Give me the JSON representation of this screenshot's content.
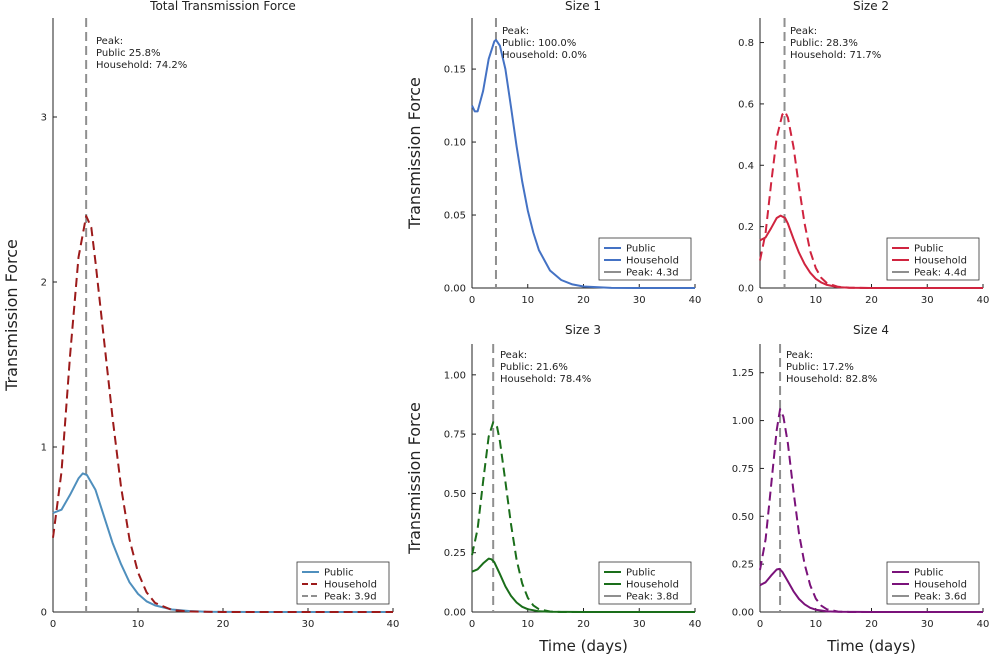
{
  "chart_data": [
    {
      "type": "line",
      "title": "Total Transmission Force",
      "xlabel": "",
      "ylabel": "Transmission Force",
      "xlim": [
        0,
        40
      ],
      "ylim": [
        0,
        3.6
      ],
      "xticks": [
        0,
        10,
        20,
        30,
        40
      ],
      "yticks": [
        0,
        1,
        2,
        3
      ],
      "ytick_labels": [
        "0",
        "1",
        "2",
        "3"
      ],
      "annotation": [
        "Peak:",
        "Public 25.8%",
        "Household: 74.2%"
      ],
      "peak_day": 3.9,
      "colors": {
        "public": "#4f8fbd",
        "household": "#9c1a1a",
        "peak": "#8f8f8f"
      },
      "legend": {
        "position": "bottom-right",
        "labels": [
          "Public",
          "Household",
          "Peak: 3.9d"
        ]
      },
      "series": [
        {
          "name": "Public",
          "style": "solid",
          "points": [
            [
              0,
              0.6
            ],
            [
              1,
              0.62
            ],
            [
              2,
              0.71
            ],
            [
              3,
              0.81
            ],
            [
              3.5,
              0.84
            ],
            [
              4,
              0.83
            ],
            [
              5,
              0.74
            ],
            [
              6,
              0.58
            ],
            [
              7,
              0.42
            ],
            [
              8,
              0.29
            ],
            [
              9,
              0.18
            ],
            [
              10,
              0.11
            ],
            [
              11,
              0.065
            ],
            [
              12,
              0.04
            ],
            [
              14,
              0.015
            ],
            [
              16,
              0.006
            ],
            [
              18,
              0.002
            ],
            [
              20,
              0.0008
            ],
            [
              25,
              0
            ],
            [
              30,
              0
            ],
            [
              40,
              0
            ]
          ]
        },
        {
          "name": "Household",
          "style": "dashed",
          "points": [
            [
              0,
              0.45
            ],
            [
              1,
              0.85
            ],
            [
              2,
              1.55
            ],
            [
              3,
              2.15
            ],
            [
              3.9,
              2.4
            ],
            [
              4.5,
              2.33
            ],
            [
              5,
              2.12
            ],
            [
              6,
              1.65
            ],
            [
              7,
              1.18
            ],
            [
              8,
              0.76
            ],
            [
              9,
              0.44
            ],
            [
              10,
              0.24
            ],
            [
              11,
              0.12
            ],
            [
              12,
              0.055
            ],
            [
              14,
              0.012
            ],
            [
              16,
              0.003
            ],
            [
              18,
              0.001
            ],
            [
              20,
              0
            ],
            [
              30,
              0
            ],
            [
              40,
              0
            ]
          ]
        }
      ]
    },
    {
      "type": "line",
      "title": "Size 1",
      "xlabel": "",
      "ylabel": "Transmission Force",
      "xlim": [
        0,
        40
      ],
      "ylim": [
        0,
        0.185
      ],
      "xticks": [
        0,
        10,
        20,
        30,
        40
      ],
      "yticks": [
        0,
        0.05,
        0.1,
        0.15
      ],
      "ytick_labels": [
        "0.00",
        "0.05",
        "0.10",
        "0.15"
      ],
      "annotation": [
        "Peak:",
        "Public: 100.0%",
        "Household: 0.0%"
      ],
      "peak_day": 4.3,
      "colors": {
        "public": "#4472c4",
        "household": "#4472c4",
        "peak": "#8f8f8f"
      },
      "legend": {
        "position": "bottom-right",
        "labels": [
          "Public",
          "Household",
          "Peak: 4.3d"
        ]
      },
      "series": [
        {
          "name": "Public",
          "style": "solid",
          "points": [
            [
              0,
              0.125
            ],
            [
              0.5,
              0.121
            ],
            [
              1,
              0.121
            ],
            [
              2,
              0.135
            ],
            [
              3,
              0.157
            ],
            [
              4,
              0.169
            ],
            [
              4.3,
              0.17
            ],
            [
              5,
              0.166
            ],
            [
              6,
              0.15
            ],
            [
              7,
              0.124
            ],
            [
              8,
              0.097
            ],
            [
              9,
              0.073
            ],
            [
              10,
              0.053
            ],
            [
              11,
              0.038
            ],
            [
              12,
              0.026
            ],
            [
              14,
              0.012
            ],
            [
              16,
              0.0055
            ],
            [
              18,
              0.0025
            ],
            [
              20,
              0.001
            ],
            [
              25,
              0.0001
            ],
            [
              30,
              0
            ],
            [
              40,
              0
            ]
          ]
        }
      ]
    },
    {
      "type": "line",
      "title": "Size 2",
      "xlabel": "",
      "ylabel": "",
      "xlim": [
        0,
        40
      ],
      "ylim": [
        0,
        0.88
      ],
      "xticks": [
        0,
        10,
        20,
        30,
        40
      ],
      "yticks": [
        0,
        0.2,
        0.4,
        0.6,
        0.8
      ],
      "ytick_labels": [
        "0.0",
        "0.2",
        "0.4",
        "0.6",
        "0.8"
      ],
      "annotation": [
        "Peak:",
        "Public: 28.3%",
        "Household: 71.7%"
      ],
      "peak_day": 4.4,
      "colors": {
        "public": "#d0243f",
        "household": "#d0243f",
        "peak": "#8f8f8f"
      },
      "legend": {
        "position": "bottom-right",
        "labels": [
          "Public",
          "Household",
          "Peak: 4.4d"
        ]
      },
      "series": [
        {
          "name": "Public",
          "style": "solid",
          "points": [
            [
              0,
              0.155
            ],
            [
              1,
              0.165
            ],
            [
              2,
              0.195
            ],
            [
              3,
              0.228
            ],
            [
              3.7,
              0.236
            ],
            [
              4.5,
              0.228
            ],
            [
              5,
              0.21
            ],
            [
              6,
              0.16
            ],
            [
              7,
              0.115
            ],
            [
              8,
              0.078
            ],
            [
              9,
              0.05
            ],
            [
              10,
              0.03
            ],
            [
              11,
              0.018
            ],
            [
              12,
              0.01
            ],
            [
              14,
              0.003
            ],
            [
              16,
              0.001
            ],
            [
              20,
              0
            ],
            [
              30,
              0
            ],
            [
              40,
              0
            ]
          ]
        },
        {
          "name": "Household",
          "style": "dashed",
          "points": [
            [
              0,
              0.09
            ],
            [
              1,
              0.18
            ],
            [
              2,
              0.34
            ],
            [
              3,
              0.49
            ],
            [
              4,
              0.565
            ],
            [
              4.5,
              0.575
            ],
            [
              5,
              0.555
            ],
            [
              6,
              0.46
            ],
            [
              7,
              0.33
            ],
            [
              8,
              0.21
            ],
            [
              9,
              0.12
            ],
            [
              10,
              0.065
            ],
            [
              11,
              0.033
            ],
            [
              12,
              0.016
            ],
            [
              14,
              0.004
            ],
            [
              16,
              0.001
            ],
            [
              20,
              0
            ],
            [
              30,
              0
            ],
            [
              40,
              0
            ]
          ]
        }
      ]
    },
    {
      "type": "line",
      "title": "Size 3",
      "xlabel": "Time (days)",
      "ylabel": "Transmission Force",
      "xlim": [
        0,
        40
      ],
      "ylim": [
        0,
        1.13
      ],
      "xticks": [
        0,
        10,
        20,
        30,
        40
      ],
      "yticks": [
        0,
        0.25,
        0.5,
        0.75,
        1.0
      ],
      "ytick_labels": [
        "0.00",
        "0.25",
        "0.50",
        "0.75",
        "1.00"
      ],
      "annotation": [
        "Peak:",
        "Public: 21.6%",
        "Household: 78.4%"
      ],
      "peak_day": 3.8,
      "colors": {
        "public": "#1a6e1a",
        "household": "#1a6e1a",
        "peak": "#8f8f8f"
      },
      "legend": {
        "position": "bottom-right",
        "labels": [
          "Public",
          "Household",
          "Peak: 3.8d"
        ]
      },
      "series": [
        {
          "name": "Public",
          "style": "solid",
          "points": [
            [
              0,
              0.17
            ],
            [
              1,
              0.18
            ],
            [
              2,
              0.205
            ],
            [
              3,
              0.225
            ],
            [
              3.5,
              0.222
            ],
            [
              4,
              0.21
            ],
            [
              5,
              0.16
            ],
            [
              6,
              0.108
            ],
            [
              7,
              0.068
            ],
            [
              8,
              0.04
            ],
            [
              9,
              0.022
            ],
            [
              10,
              0.012
            ],
            [
              12,
              0.003
            ],
            [
              14,
              0.001
            ],
            [
              20,
              0
            ],
            [
              30,
              0
            ],
            [
              40,
              0
            ]
          ]
        },
        {
          "name": "Household",
          "style": "dashed",
          "points": [
            [
              0,
              0.24
            ],
            [
              1,
              0.35
            ],
            [
              2,
              0.55
            ],
            [
              3,
              0.74
            ],
            [
              3.8,
              0.8
            ],
            [
              4.5,
              0.78
            ],
            [
              5,
              0.72
            ],
            [
              6,
              0.55
            ],
            [
              7,
              0.37
            ],
            [
              8,
              0.22
            ],
            [
              9,
              0.12
            ],
            [
              10,
              0.06
            ],
            [
              11,
              0.028
            ],
            [
              12,
              0.012
            ],
            [
              14,
              0.002
            ],
            [
              16,
              0
            ],
            [
              20,
              0
            ],
            [
              30,
              0
            ],
            [
              40,
              0
            ]
          ]
        }
      ]
    },
    {
      "type": "line",
      "title": "Size 4",
      "xlabel": "Time (days)",
      "ylabel": "",
      "xlim": [
        0,
        40
      ],
      "ylim": [
        0,
        1.4
      ],
      "xticks": [
        0,
        10,
        20,
        30,
        40
      ],
      "yticks": [
        0,
        0.25,
        0.5,
        0.75,
        1.0,
        1.25
      ],
      "ytick_labels": [
        "0.00",
        "0.25",
        "0.50",
        "0.75",
        "1.00",
        "1.25"
      ],
      "annotation": [
        "Peak:",
        "Public: 17.2%",
        "Household: 82.8%"
      ],
      "peak_day": 3.6,
      "colors": {
        "public": "#7a127a",
        "household": "#7a127a",
        "peak": "#8f8f8f"
      },
      "legend": {
        "position": "bottom-right",
        "labels": [
          "Public",
          "Household",
          "Peak: 3.6d"
        ]
      },
      "series": [
        {
          "name": "Public",
          "style": "solid",
          "points": [
            [
              0,
              0.14
            ],
            [
              1,
              0.155
            ],
            [
              2,
              0.19
            ],
            [
              3,
              0.222
            ],
            [
              3.5,
              0.225
            ],
            [
              4,
              0.21
            ],
            [
              5,
              0.16
            ],
            [
              6,
              0.108
            ],
            [
              7,
              0.068
            ],
            [
              8,
              0.04
            ],
            [
              9,
              0.022
            ],
            [
              10,
              0.012
            ],
            [
              12,
              0.003
            ],
            [
              14,
              0.001
            ],
            [
              20,
              0
            ],
            [
              30,
              0
            ],
            [
              40,
              0
            ]
          ]
        },
        {
          "name": "Household",
          "style": "dashed",
          "points": [
            [
              0,
              0.22
            ],
            [
              1,
              0.38
            ],
            [
              2,
              0.66
            ],
            [
              3,
              0.95
            ],
            [
              3.6,
              1.06
            ],
            [
              4.2,
              1.02
            ],
            [
              5,
              0.88
            ],
            [
              6,
              0.63
            ],
            [
              7,
              0.41
            ],
            [
              8,
              0.25
            ],
            [
              9,
              0.14
            ],
            [
              10,
              0.07
            ],
            [
              11,
              0.033
            ],
            [
              12,
              0.014
            ],
            [
              14,
              0.002
            ],
            [
              16,
              0
            ],
            [
              20,
              0
            ],
            [
              30,
              0
            ],
            [
              40,
              0
            ]
          ]
        }
      ]
    }
  ]
}
